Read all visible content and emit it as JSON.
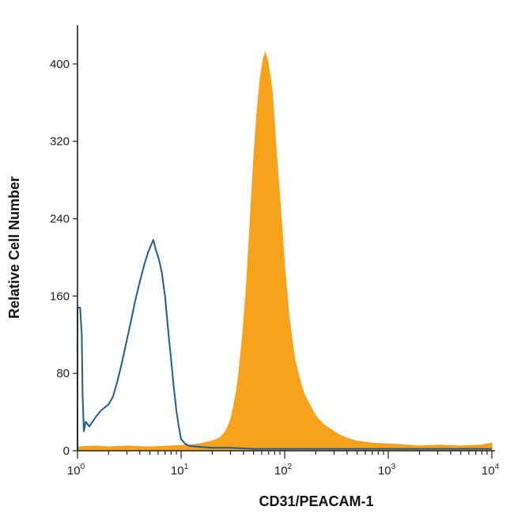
{
  "chart_data": {
    "type": "histogram",
    "xlabel": "CD31/PEACAM-1",
    "ylabel": "Relative Cell Number",
    "x_scale": "log",
    "xlim": [
      1,
      10000
    ],
    "ylim": [
      0,
      440
    ],
    "x_ticks": [
      {
        "value": 1,
        "base": "10",
        "exp": "0"
      },
      {
        "value": 10,
        "base": "10",
        "exp": "1"
      },
      {
        "value": 100,
        "base": "10",
        "exp": "2"
      },
      {
        "value": 1000,
        "base": "10",
        "exp": "3"
      },
      {
        "value": 10000,
        "base": "10",
        "exp": "4"
      }
    ],
    "y_ticks": [
      0,
      80,
      160,
      240,
      320,
      400
    ],
    "series": [
      {
        "style": "filled",
        "color": "#f7a21b",
        "points": [
          [
            1,
            4
          ],
          [
            1.5,
            5
          ],
          [
            2,
            4
          ],
          [
            3,
            5
          ],
          [
            5,
            4
          ],
          [
            8,
            5
          ],
          [
            12,
            6
          ],
          [
            15,
            7
          ],
          [
            18,
            9
          ],
          [
            20,
            10
          ],
          [
            22,
            12
          ],
          [
            24,
            14
          ],
          [
            26,
            18
          ],
          [
            28,
            24
          ],
          [
            30,
            32
          ],
          [
            32,
            45
          ],
          [
            34,
            60
          ],
          [
            36,
            80
          ],
          [
            38,
            105
          ],
          [
            40,
            130
          ],
          [
            43,
            175
          ],
          [
            46,
            230
          ],
          [
            50,
            300
          ],
          [
            54,
            350
          ],
          [
            58,
            385
          ],
          [
            62,
            405
          ],
          [
            65,
            412
          ],
          [
            68,
            405
          ],
          [
            72,
            390
          ],
          [
            76,
            370
          ],
          [
            80,
            335
          ],
          [
            85,
            295
          ],
          [
            90,
            260
          ],
          [
            95,
            225
          ],
          [
            100,
            190
          ],
          [
            105,
            165
          ],
          [
            110,
            140
          ],
          [
            118,
            115
          ],
          [
            125,
            95
          ],
          [
            135,
            80
          ],
          [
            145,
            68
          ],
          [
            155,
            58
          ],
          [
            170,
            50
          ],
          [
            190,
            40
          ],
          [
            210,
            33
          ],
          [
            240,
            27
          ],
          [
            280,
            22
          ],
          [
            330,
            17
          ],
          [
            400,
            13
          ],
          [
            500,
            10
          ],
          [
            700,
            8
          ],
          [
            1000,
            7
          ],
          [
            1500,
            6
          ],
          [
            2000,
            5
          ],
          [
            3000,
            6
          ],
          [
            5000,
            5
          ],
          [
            8000,
            6
          ],
          [
            10000,
            8
          ]
        ]
      },
      {
        "style": "outline",
        "color": "#1f5c94",
        "points": [
          [
            1,
            148
          ],
          [
            1.06,
            148
          ],
          [
            1.1,
            120
          ],
          [
            1.12,
            60
          ],
          [
            1.15,
            20
          ],
          [
            1.2,
            30
          ],
          [
            1.3,
            25
          ],
          [
            1.5,
            35
          ],
          [
            1.7,
            42
          ],
          [
            2,
            48
          ],
          [
            2.2,
            56
          ],
          [
            2.4,
            70
          ],
          [
            2.6,
            85
          ],
          [
            2.8,
            100
          ],
          [
            3,
            115
          ],
          [
            3.3,
            135
          ],
          [
            3.6,
            155
          ],
          [
            4,
            175
          ],
          [
            4.4,
            192
          ],
          [
            4.8,
            205
          ],
          [
            5.1,
            212
          ],
          [
            5.4,
            218
          ],
          [
            5.7,
            208
          ],
          [
            6.1,
            198
          ],
          [
            6.5,
            185
          ],
          [
            7,
            160
          ],
          [
            7.5,
            125
          ],
          [
            8,
            95
          ],
          [
            8.5,
            65
          ],
          [
            9,
            42
          ],
          [
            9.5,
            25
          ],
          [
            10,
            12
          ],
          [
            11,
            7
          ],
          [
            12,
            5
          ],
          [
            15,
            4
          ],
          [
            20,
            3
          ],
          [
            30,
            3
          ],
          [
            50,
            2
          ],
          [
            100,
            2
          ],
          [
            200,
            2
          ],
          [
            500,
            2
          ],
          [
            1000,
            2
          ],
          [
            2000,
            2
          ],
          [
            5000,
            2
          ],
          [
            10000,
            2
          ]
        ]
      }
    ]
  }
}
